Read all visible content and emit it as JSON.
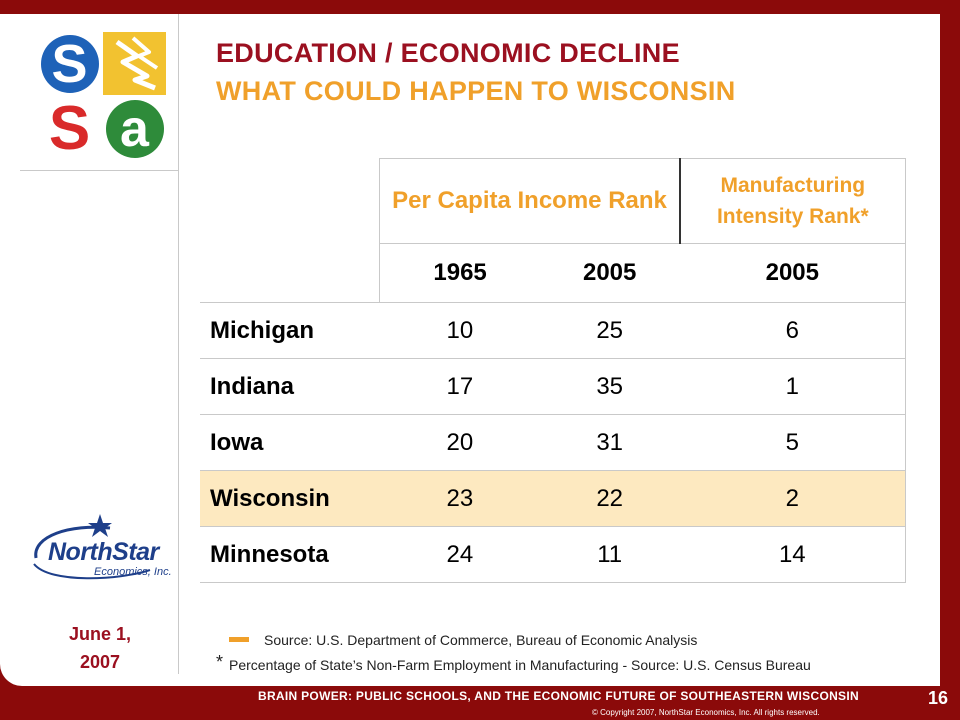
{
  "logo": {
    "letters": [
      "S",
      "S",
      "a"
    ],
    "name": "ssa-logo"
  },
  "title": {
    "line1": "EDUCATION / ECONOMIC DECLINE",
    "line2": "WHAT COULD HAPPEN TO WISCONSIN"
  },
  "table": {
    "header_pc": "Per Capita Income Rank",
    "header_mi": "Manufacturing Intensity Rank*",
    "years": [
      "1965",
      "2005",
      "2005"
    ],
    "rows": [
      {
        "state": "Michigan",
        "v1965": "10",
        "v2005": "25",
        "mi2005": "6"
      },
      {
        "state": "Indiana",
        "v1965": "17",
        "v2005": "35",
        "mi2005": "1"
      },
      {
        "state": "Iowa",
        "v1965": "20",
        "v2005": "31",
        "mi2005": "5"
      },
      {
        "state": "Wisconsin",
        "v1965": "23",
        "v2005": "22",
        "mi2005": "2"
      },
      {
        "state": "Minnesota",
        "v1965": "24",
        "v2005": "11",
        "mi2005": "14"
      }
    ]
  },
  "northstar": {
    "word": "NorthStar",
    "sub": "Economics, Inc."
  },
  "date": {
    "line1": "June 1,",
    "line2": "2007"
  },
  "notes": {
    "source": "Source: U.S. Department of Commerce, Bureau of Economic Analysis",
    "footnote_star": "*",
    "footnote": "Percentage of State’s Non-Farm Employment in Manufacturing - Source: U.S. Census Bureau"
  },
  "footer": {
    "title": "BRAIN POWER: PUBLIC SCHOOLS, AND THE ECONOMIC FUTURE OF SOUTHEASTERN WISCONSIN",
    "copyright": "© Copyright 2007, NorthStar Economics, Inc. All rights reserved.",
    "page": "16"
  },
  "colors": {
    "border": "#8b0a0a",
    "title_red": "#9b1020",
    "title_orange": "#f0a02a",
    "highlight_row": "#fde9c0"
  }
}
